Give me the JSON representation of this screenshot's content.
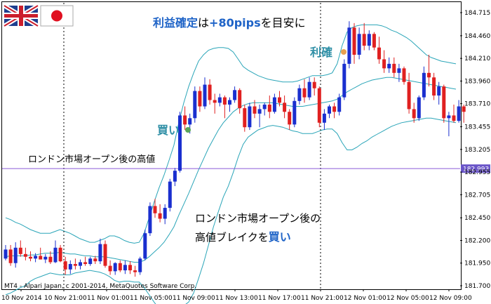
{
  "colors": {
    "up": "#1a2fcf",
    "down": "#e02020",
    "bands": "#2aa5b8",
    "level": "#8a5ad8",
    "level_label_bg": "#6a55c8",
    "grid": "#000000",
    "accent_blue": "#1e63c7"
  },
  "flags": {
    "uk": "uk-flag-icon",
    "jp": "japan-flag-icon"
  },
  "annotations": {
    "target_part1": "利益確定",
    "target_part2": "は",
    "target_part3": "+80pips",
    "target_part4": "を目安に",
    "take_profit": "利確",
    "buy": "買い",
    "london_high": "ロンドン市場オープン後の高値",
    "break_line1": "ロンドン市場オープン後の",
    "break_line2a": "高値ブレイクを",
    "break_line2b": "買い"
  },
  "copyright": "MT4 - Alpari Japan, c 2001-2014, MetaQuotes Software Corp.",
  "chart_data": {
    "type": "candlestick",
    "y_ticks": [
      "184.715",
      "184.460",
      "184.210",
      "183.960",
      "183.710",
      "183.455",
      "183.205",
      "182.955",
      "182.705",
      "182.450",
      "182.200",
      "181.950",
      "181.700"
    ],
    "ylim": [
      181.7,
      184.715
    ],
    "x_ticks": [
      "10 Nov 2014",
      "10 Nov 21:00",
      "11 Nov 01:00",
      "11 Nov 05:00",
      "11 Nov 09:00",
      "11 Nov 13:00",
      "11 Nov 17:00",
      "11 Nov 21:00",
      "12 Nov 01:00",
      "12 Nov 05:00",
      "12 Nov 09:00"
    ],
    "level": {
      "value": 182.993,
      "label": "182.993"
    },
    "separators": [
      "10 Nov 21:00",
      "11 Nov 21:00"
    ],
    "candles": [
      [
        182.0,
        182.15,
        181.98,
        182.1
      ],
      [
        182.1,
        182.15,
        181.92,
        181.95
      ],
      [
        181.95,
        182.18,
        181.9,
        182.12
      ],
      [
        182.12,
        182.2,
        182.02,
        182.05
      ],
      [
        182.05,
        182.12,
        181.98,
        182.02
      ],
      [
        182.02,
        182.08,
        181.97,
        182.0
      ],
      [
        182.0,
        182.06,
        181.96,
        182.03
      ],
      [
        182.03,
        182.12,
        181.99,
        181.99
      ],
      [
        181.99,
        182.05,
        181.95,
        182.02
      ],
      [
        182.02,
        182.08,
        181.94,
        181.96
      ],
      [
        181.96,
        182.2,
        181.95,
        182.12
      ],
      [
        182.12,
        182.15,
        181.96,
        181.97
      ],
      [
        181.97,
        182.02,
        181.82,
        181.88
      ],
      [
        181.88,
        181.98,
        181.83,
        181.94
      ],
      [
        181.94,
        182.0,
        181.88,
        181.92
      ],
      [
        181.92,
        181.99,
        181.88,
        181.96
      ],
      [
        181.96,
        182.02,
        181.92,
        181.94
      ],
      [
        181.94,
        182.02,
        181.92,
        182.0
      ],
      [
        182.0,
        182.03,
        181.94,
        181.97
      ],
      [
        181.97,
        182.22,
        181.94,
        182.16
      ],
      [
        182.16,
        182.2,
        181.9,
        181.92
      ],
      [
        181.92,
        181.98,
        181.82,
        181.86
      ],
      [
        181.86,
        181.96,
        181.82,
        181.95
      ],
      [
        181.95,
        181.98,
        181.85,
        181.87
      ],
      [
        181.87,
        181.98,
        181.83,
        181.93
      ],
      [
        181.93,
        181.97,
        181.83,
        181.87
      ],
      [
        181.87,
        181.92,
        181.8,
        181.85
      ],
      [
        181.85,
        182.02,
        181.82,
        182.0
      ],
      [
        182.0,
        182.32,
        181.98,
        182.28
      ],
      [
        182.28,
        182.62,
        182.25,
        182.58
      ],
      [
        182.58,
        182.66,
        182.45,
        182.5
      ],
      [
        182.5,
        182.6,
        182.4,
        182.44
      ],
      [
        182.44,
        182.6,
        182.38,
        182.56
      ],
      [
        182.56,
        182.88,
        182.52,
        182.85
      ],
      [
        182.85,
        183.0,
        182.8,
        182.97
      ],
      [
        182.97,
        183.62,
        182.95,
        183.58
      ],
      [
        183.58,
        183.68,
        183.42,
        183.48
      ],
      [
        183.48,
        183.6,
        183.38,
        183.55
      ],
      [
        183.55,
        183.9,
        183.5,
        183.85
      ],
      [
        183.85,
        183.9,
        183.62,
        183.68
      ],
      [
        183.68,
        184.0,
        183.65,
        183.92
      ],
      [
        183.92,
        183.98,
        183.7,
        183.75
      ],
      [
        183.75,
        183.82,
        183.6,
        183.72
      ],
      [
        183.72,
        183.82,
        183.68,
        183.78
      ],
      [
        183.78,
        183.8,
        183.55,
        183.7
      ],
      [
        183.7,
        183.78,
        183.62,
        183.75
      ],
      [
        183.75,
        183.9,
        183.72,
        183.86
      ],
      [
        183.86,
        183.88,
        183.6,
        183.66
      ],
      [
        183.66,
        183.7,
        183.4,
        183.45
      ],
      [
        183.45,
        183.72,
        183.42,
        183.68
      ],
      [
        183.68,
        183.75,
        183.55,
        183.6
      ],
      [
        183.6,
        183.7,
        183.45,
        183.65
      ],
      [
        183.65,
        183.72,
        183.58,
        183.7
      ],
      [
        183.7,
        183.8,
        183.55,
        183.62
      ],
      [
        183.62,
        183.82,
        183.6,
        183.78
      ],
      [
        183.78,
        183.85,
        183.68,
        183.72
      ],
      [
        183.72,
        183.8,
        183.55,
        183.62
      ],
      [
        183.62,
        183.65,
        183.42,
        183.48
      ],
      [
        183.48,
        183.78,
        183.45,
        183.74
      ],
      [
        183.74,
        183.92,
        183.7,
        183.88
      ],
      [
        183.88,
        183.98,
        183.72,
        183.78
      ],
      [
        183.78,
        184.0,
        183.75,
        183.95
      ],
      [
        183.95,
        184.0,
        183.8,
        183.88
      ],
      [
        183.88,
        183.9,
        183.45,
        183.5
      ],
      [
        183.5,
        183.65,
        183.42,
        183.6
      ],
      [
        183.6,
        183.7,
        183.55,
        183.68
      ],
      [
        183.68,
        183.72,
        183.55,
        183.62
      ],
      [
        183.62,
        183.82,
        183.58,
        183.78
      ],
      [
        183.78,
        184.2,
        183.75,
        184.15
      ],
      [
        184.15,
        184.62,
        184.1,
        184.55
      ],
      [
        184.55,
        184.6,
        184.15,
        184.25
      ],
      [
        184.25,
        184.55,
        184.2,
        184.48
      ],
      [
        184.48,
        184.6,
        184.3,
        184.35
      ],
      [
        184.35,
        184.52,
        184.3,
        184.48
      ],
      [
        184.48,
        184.5,
        184.3,
        184.33
      ],
      [
        184.33,
        184.45,
        184.15,
        184.2
      ],
      [
        184.2,
        184.3,
        184.05,
        184.1
      ],
      [
        184.1,
        184.22,
        184.05,
        184.15
      ],
      [
        184.15,
        184.22,
        184.0,
        184.05
      ],
      [
        184.05,
        184.15,
        183.95,
        184.1
      ],
      [
        184.1,
        184.12,
        183.92,
        183.95
      ],
      [
        183.95,
        184.05,
        183.6,
        183.65
      ],
      [
        183.65,
        183.72,
        183.5,
        183.55
      ],
      [
        183.55,
        183.8,
        183.52,
        183.78
      ],
      [
        183.78,
        184.12,
        183.75,
        184.05
      ],
      [
        184.05,
        184.25,
        183.9,
        184.0
      ],
      [
        184.0,
        184.05,
        183.75,
        183.8
      ],
      [
        183.8,
        183.95,
        183.7,
        183.9
      ],
      [
        183.9,
        183.92,
        183.5,
        183.55
      ],
      [
        183.55,
        183.62,
        183.35,
        183.58
      ],
      [
        183.58,
        183.7,
        183.5,
        183.52
      ],
      [
        183.52,
        183.75,
        183.5,
        183.68
      ],
      [
        183.68,
        183.7,
        183.5,
        183.62
      ]
    ],
    "bands": {
      "upper": [
        182.45,
        182.43,
        182.4,
        182.38,
        182.35,
        182.32,
        182.3,
        182.28,
        182.28,
        182.28,
        182.3,
        182.32,
        182.3,
        182.28,
        182.25,
        182.22,
        182.2,
        182.18,
        182.18,
        182.2,
        182.22,
        182.25,
        182.25,
        182.23,
        182.2,
        182.18,
        182.17,
        182.18,
        182.28,
        182.45,
        182.62,
        182.78,
        182.92,
        183.08,
        183.25,
        183.5,
        183.72,
        183.9,
        184.05,
        184.18,
        184.25,
        184.3,
        184.32,
        184.33,
        184.33,
        184.32,
        184.28,
        184.2,
        184.12,
        184.08,
        184.05,
        184.02,
        184.0,
        183.98,
        183.97,
        183.96,
        183.95,
        183.95,
        183.95,
        183.96,
        183.98,
        184.0,
        184.02,
        184.02,
        184.02,
        184.03,
        184.05,
        184.15,
        184.35,
        184.5,
        184.55,
        184.57,
        184.58,
        184.58,
        184.58,
        184.58,
        184.57,
        184.55,
        184.52,
        184.5,
        184.47,
        184.44,
        184.4,
        184.35,
        184.3,
        184.25,
        184.22,
        184.2,
        184.18,
        184.17,
        184.16,
        184.15
      ],
      "middle": [
        182.02,
        182.03,
        182.03,
        182.03,
        182.03,
        182.04,
        182.04,
        182.05,
        182.06,
        182.06,
        182.06,
        182.07,
        182.06,
        182.05,
        182.05,
        182.04,
        182.03,
        182.03,
        182.02,
        182.02,
        182.02,
        182.01,
        182.0,
        181.99,
        181.98,
        181.97,
        181.96,
        181.96,
        181.98,
        182.02,
        182.07,
        182.12,
        182.18,
        182.26,
        182.35,
        182.48,
        182.6,
        182.72,
        182.85,
        182.98,
        183.1,
        183.22,
        183.32,
        183.42,
        183.5,
        183.56,
        183.62,
        183.66,
        183.69,
        183.71,
        183.72,
        183.72,
        183.72,
        183.72,
        183.72,
        183.71,
        183.7,
        183.69,
        183.68,
        183.68,
        183.68,
        183.69,
        183.7,
        183.71,
        183.72,
        183.73,
        183.74,
        183.76,
        183.8,
        183.84,
        183.87,
        183.9,
        183.93,
        183.95,
        183.97,
        183.98,
        183.99,
        184.0,
        184.0,
        183.99,
        183.98,
        183.97,
        183.96,
        183.95,
        183.94,
        183.93,
        183.92,
        183.91,
        183.9,
        183.89,
        183.88,
        183.87
      ],
      "lower": [
        181.6,
        181.62,
        181.65,
        181.68,
        181.7,
        181.75,
        181.78,
        181.8,
        181.82,
        181.84,
        181.83,
        181.82,
        181.82,
        181.82,
        181.84,
        181.85,
        181.86,
        181.87,
        181.86,
        181.85,
        181.83,
        181.8,
        181.76,
        181.74,
        181.75,
        181.75,
        181.74,
        181.74,
        181.68,
        181.6,
        181.52,
        181.45,
        181.4,
        181.42,
        181.45,
        181.46,
        181.48,
        181.52,
        181.62,
        181.78,
        181.95,
        182.15,
        182.35,
        182.52,
        182.68,
        182.8,
        182.95,
        183.12,
        183.26,
        183.34,
        183.38,
        183.42,
        183.44,
        183.46,
        183.47,
        183.46,
        183.45,
        183.43,
        183.41,
        183.4,
        183.38,
        183.38,
        183.38,
        183.4,
        183.42,
        183.43,
        183.43,
        183.38,
        183.28,
        183.2,
        183.2,
        183.23,
        183.27,
        183.3,
        183.34,
        183.37,
        183.4,
        183.43,
        183.46,
        183.48,
        183.5,
        183.51,
        183.52,
        183.53,
        183.54,
        183.55,
        183.55,
        183.54,
        183.53,
        183.52,
        183.51,
        183.5
      ]
    }
  }
}
